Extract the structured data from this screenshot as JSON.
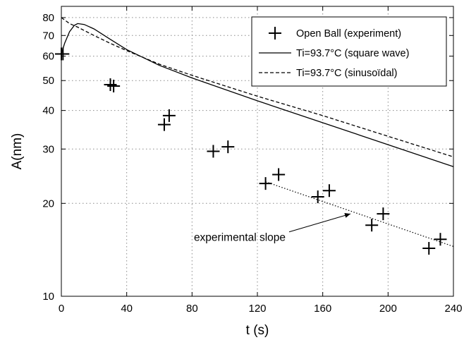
{
  "chart_data": {
    "type": "scatter",
    "xlabel": "t (s)",
    "ylabel": "A(nm)",
    "xlim": [
      0,
      240
    ],
    "ylim": [
      10,
      87
    ],
    "yscale": "log",
    "grid": true,
    "legend_position": "top-right",
    "x_ticks": [
      0,
      40,
      80,
      120,
      160,
      200,
      240
    ],
    "y_ticks": [
      10,
      20,
      30,
      40,
      50,
      60,
      70,
      80
    ],
    "series": [
      {
        "name": "Open Ball (experiment)",
        "kind": "markers",
        "marker": "plus",
        "color": "#000000",
        "x": [
          0,
          1,
          30,
          32,
          63,
          66,
          93,
          102,
          125,
          133,
          157,
          164,
          190,
          197,
          225,
          232
        ],
        "y": [
          61,
          61,
          48.5,
          48,
          36,
          38.5,
          29.5,
          30.5,
          23.2,
          24.8,
          21,
          22,
          17,
          18.5,
          14.3,
          15.3
        ]
      },
      {
        "name": "Ti=93.7°C (square wave)",
        "kind": "line",
        "style": "solid",
        "color": "#000000",
        "x": [
          0,
          2,
          5,
          8,
          10,
          14,
          20,
          30,
          40,
          60,
          80,
          120,
          160,
          200,
          240
        ],
        "y": [
          61,
          66,
          72,
          75.5,
          76.5,
          76,
          73.5,
          68,
          63,
          56,
          51,
          43,
          36.5,
          31,
          26.3
        ]
      },
      {
        "name": "Ti=93.7°C (sinusoïdal)",
        "kind": "line",
        "style": "dashed",
        "color": "#000000",
        "x": [
          0,
          5,
          10,
          20,
          30,
          40,
          60,
          80,
          120,
          160,
          200,
          240
        ],
        "y": [
          80,
          76.5,
          74.5,
          70,
          66,
          62.5,
          56.5,
          52,
          44.5,
          38.5,
          33,
          28.3
        ]
      },
      {
        "name": "experimental slope",
        "kind": "fit-line",
        "style": "dotted",
        "color": "#000000",
        "x": [
          125,
          240
        ],
        "y": [
          23.5,
          14.5
        ]
      }
    ],
    "annotations": [
      {
        "text": "experimental slope",
        "x": 120,
        "y": 15.5,
        "arrow_to": {
          "x": 177,
          "y": 18.5
        }
      }
    ]
  }
}
